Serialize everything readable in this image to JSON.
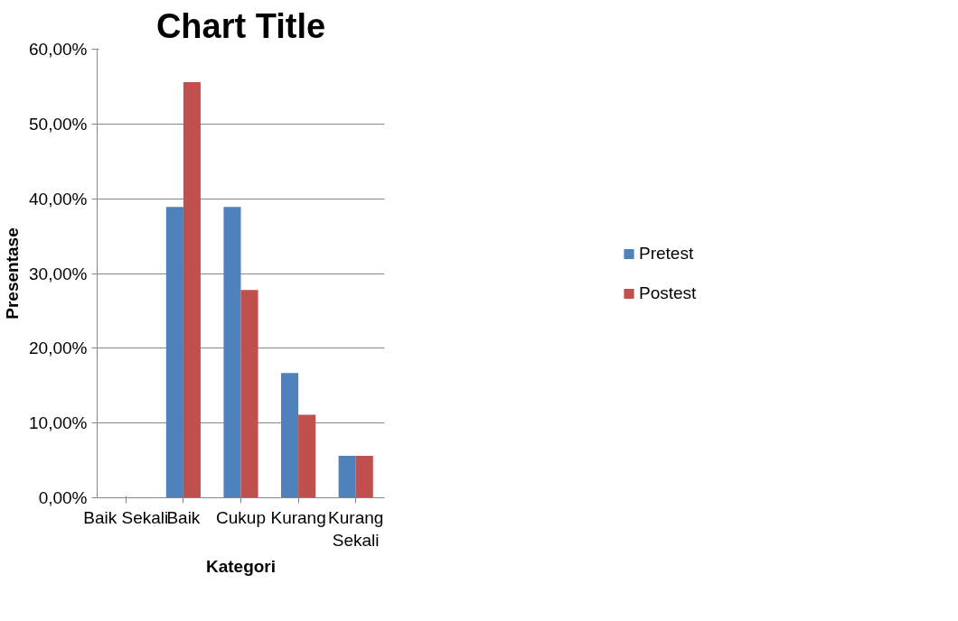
{
  "chart_data": {
    "type": "bar",
    "title": "Chart Title",
    "xlabel": "Kategori",
    "ylabel": "Presentase",
    "categories": [
      "Baik Sekali",
      "Baik",
      "Cukup",
      "Kurang",
      "Kurang Sekali"
    ],
    "series": [
      {
        "name": "Pretest",
        "color": "#4f81bd",
        "values": [
          0,
          38.9,
          38.9,
          16.7,
          5.6
        ]
      },
      {
        "name": "Postest",
        "color": "#c0504d",
        "values": [
          0,
          55.6,
          27.8,
          11.1,
          5.6
        ]
      }
    ],
    "ylim": [
      0,
      60
    ],
    "yticks": [
      {
        "value": 0,
        "label": "0,00%"
      },
      {
        "value": 10,
        "label": "10,00%"
      },
      {
        "value": 20,
        "label": "20,00%"
      },
      {
        "value": 30,
        "label": "30,00%"
      },
      {
        "value": 40,
        "label": "40,00%"
      },
      {
        "value": 50,
        "label": "50,00%"
      },
      {
        "value": 60,
        "label": "60,00%"
      }
    ],
    "grid": "y",
    "legend": "right"
  }
}
